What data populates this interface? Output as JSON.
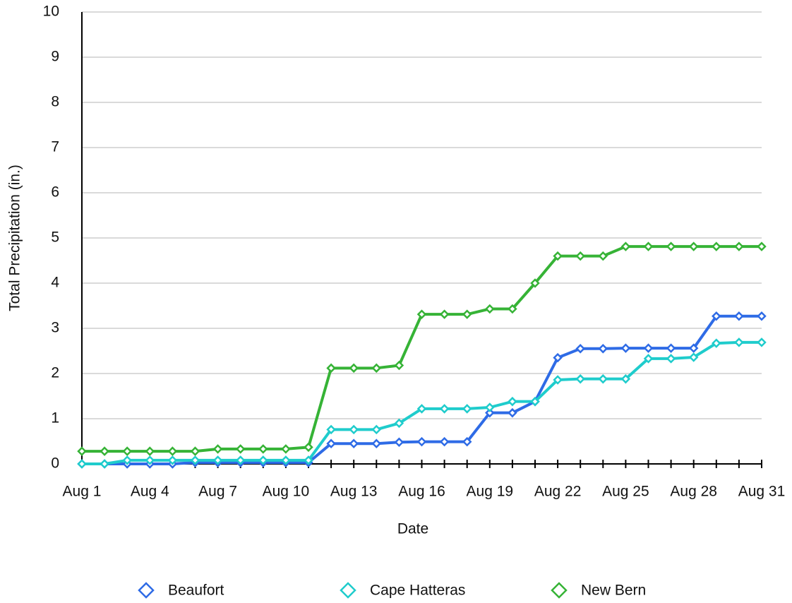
{
  "chart_data": {
    "type": "line",
    "x_label": "Date",
    "y_label": "Total Precipitation (in.)",
    "categories": [
      "Aug 1",
      null,
      null,
      "Aug 4",
      null,
      null,
      "Aug 7",
      null,
      null,
      "Aug 10",
      null,
      null,
      "Aug 13",
      null,
      null,
      "Aug 16",
      null,
      null,
      "Aug 19",
      null,
      null,
      "Aug 22",
      null,
      null,
      "Aug 25",
      null,
      null,
      "Aug 28",
      null,
      null,
      "Aug 31"
    ],
    "series": [
      {
        "name": "Beaufort",
        "color": "#2e6be6",
        "values": [
          0,
          0,
          0,
          0,
          0,
          0.03,
          0.03,
          0.03,
          0.03,
          0.03,
          0.03,
          0.45,
          0.45,
          0.45,
          0.48,
          0.49,
          0.49,
          0.49,
          1.13,
          1.13,
          1.38,
          2.35,
          2.55,
          2.55,
          2.56,
          2.56,
          2.56,
          2.56,
          3.27,
          3.27,
          3.27
        ]
      },
      {
        "name": "Cape Hatteras",
        "color": "#1fcccc",
        "values": [
          0,
          0,
          0.08,
          0.08,
          0.08,
          0.08,
          0.08,
          0.08,
          0.08,
          0.08,
          0.08,
          0.76,
          0.76,
          0.76,
          0.9,
          1.22,
          1.22,
          1.22,
          1.25,
          1.38,
          1.38,
          1.86,
          1.88,
          1.88,
          1.88,
          2.33,
          2.33,
          2.36,
          2.67,
          2.69,
          2.69
        ]
      },
      {
        "name": "New Bern",
        "color": "#36b336",
        "values": [
          0.28,
          0.28,
          0.28,
          0.28,
          0.28,
          0.28,
          0.33,
          0.33,
          0.33,
          0.33,
          0.37,
          2.12,
          2.12,
          2.12,
          2.18,
          3.31,
          3.31,
          3.31,
          3.43,
          3.43,
          4.0,
          4.6,
          4.6,
          4.6,
          4.81,
          4.81,
          4.81,
          4.81,
          4.81,
          4.81,
          4.81
        ]
      }
    ],
    "ylim": [
      0,
      10
    ],
    "yticks": [
      0,
      1,
      2,
      3,
      4,
      5,
      6,
      7,
      8,
      9,
      10
    ],
    "grid": true,
    "legend": "bottom"
  }
}
